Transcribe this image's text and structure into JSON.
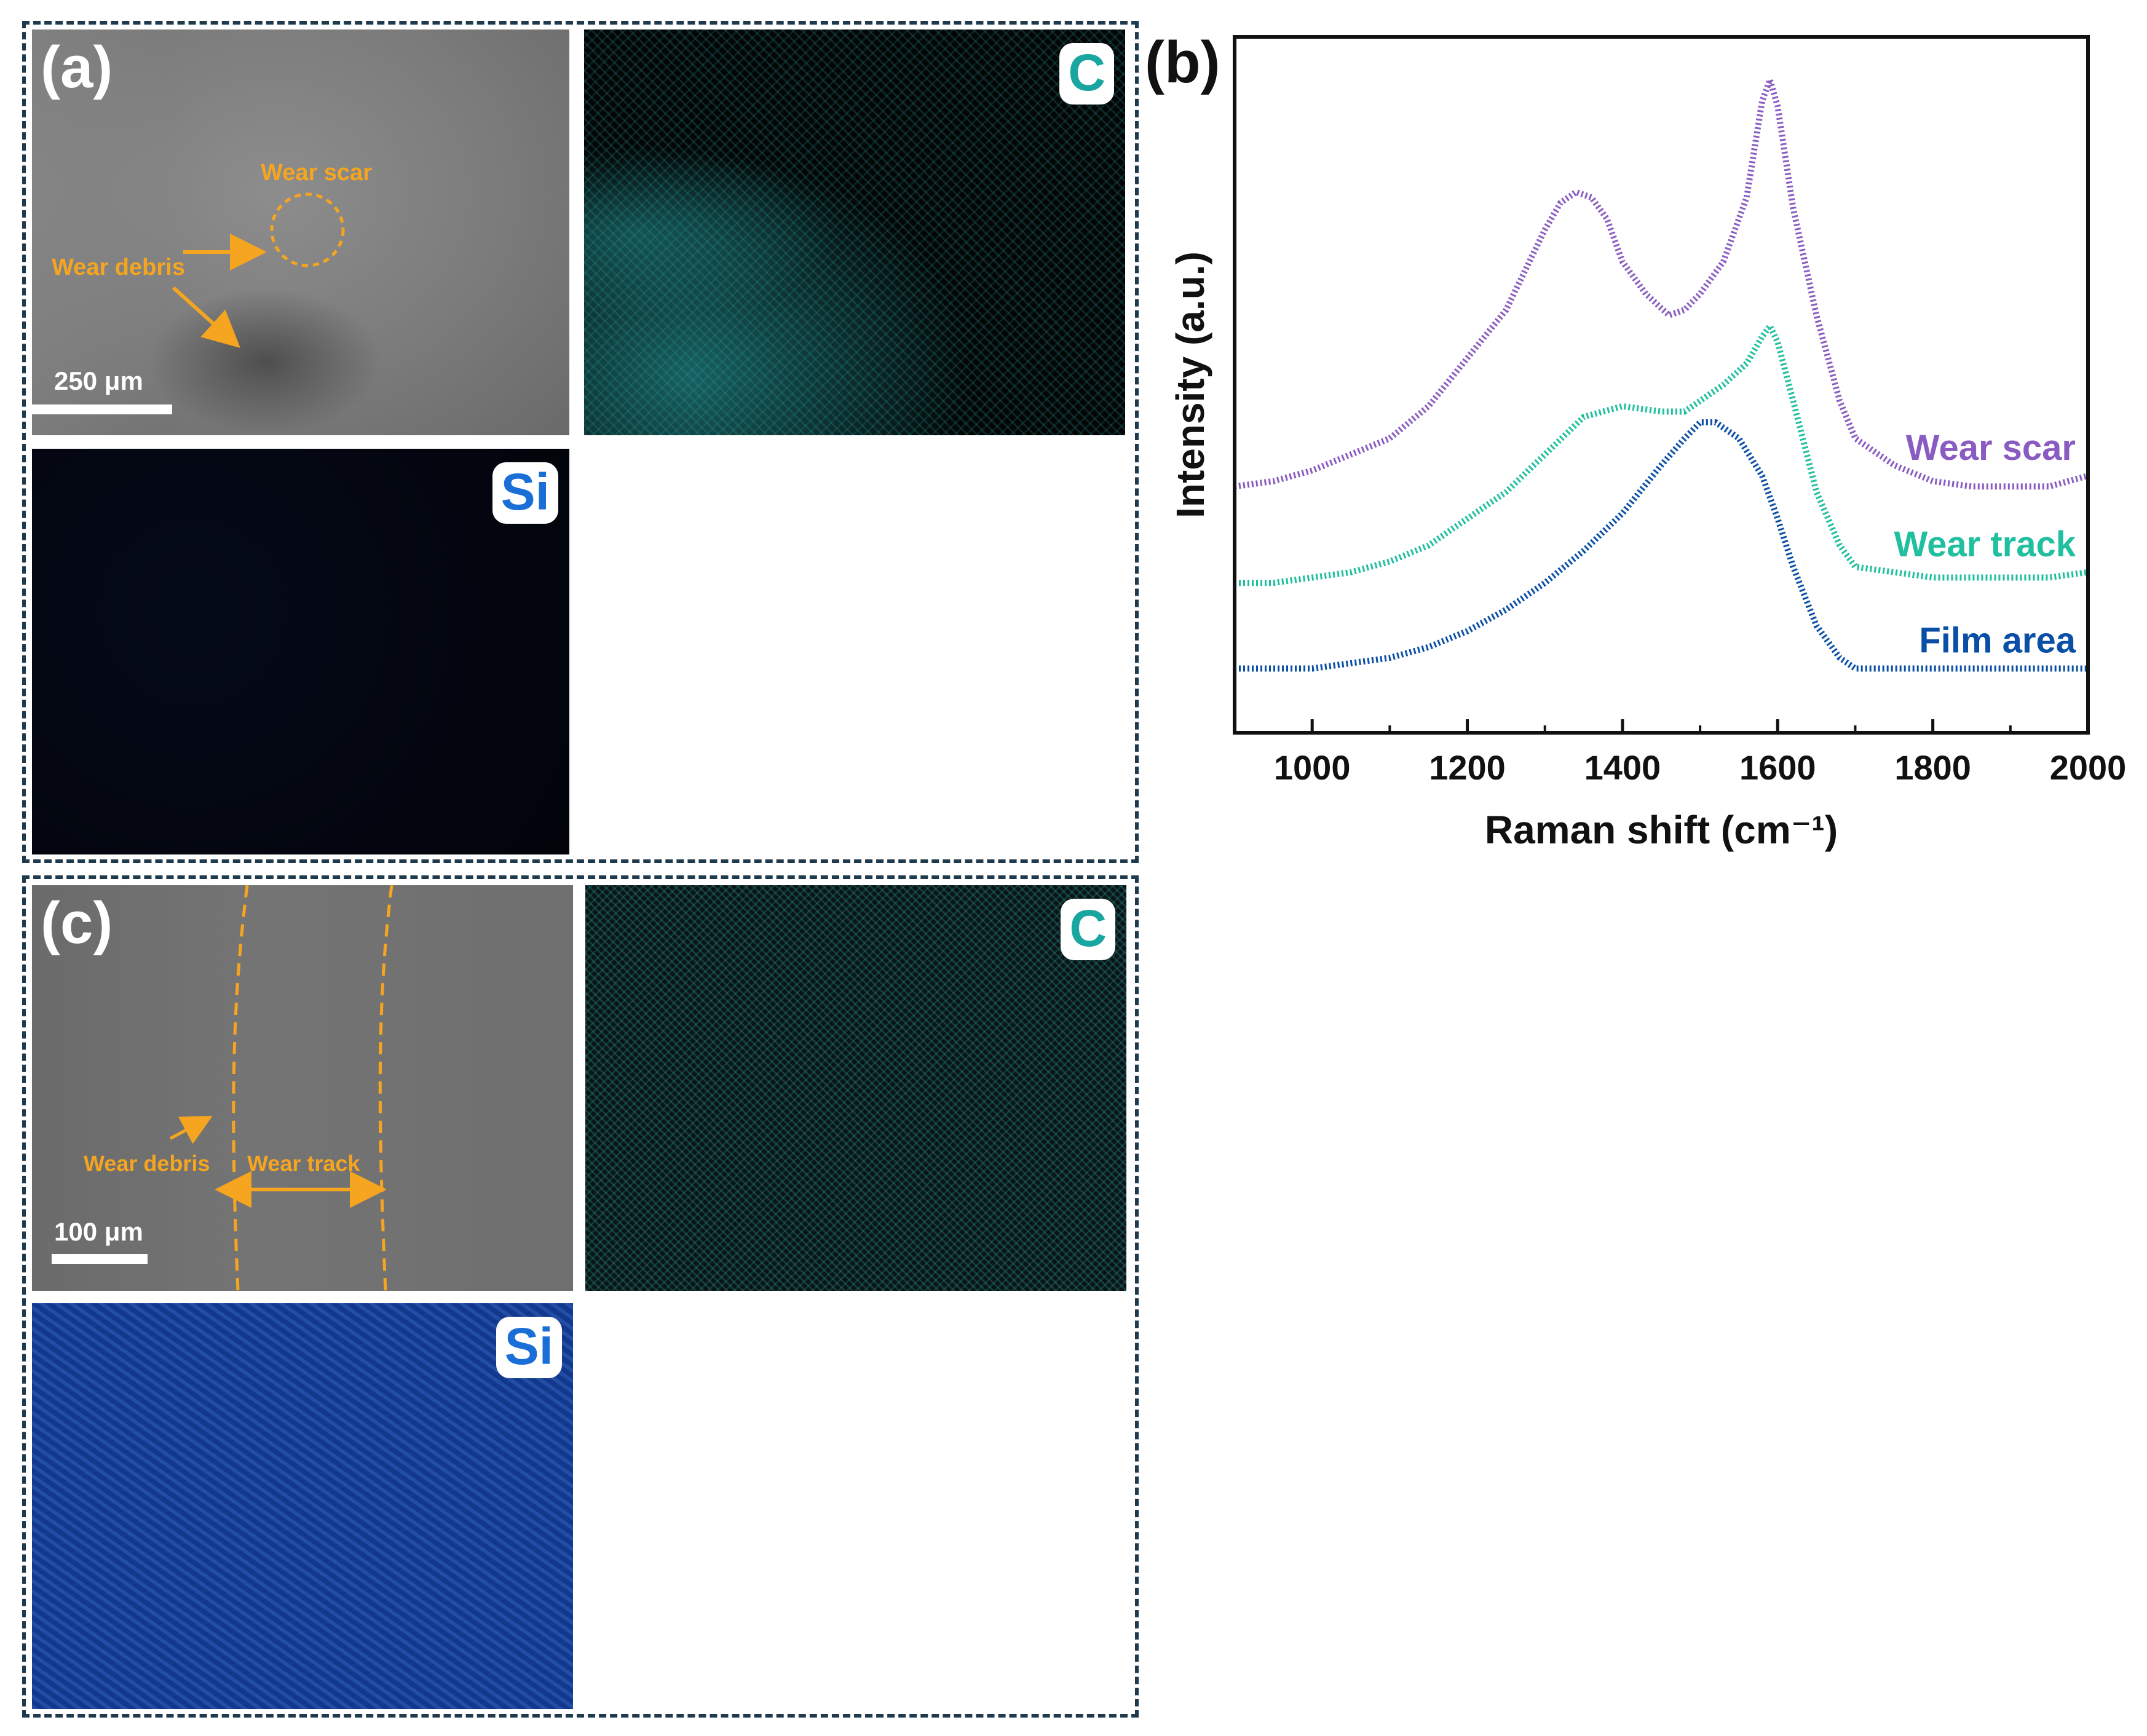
{
  "panel_a": {
    "label": "(a)",
    "sem": {
      "wear_scar_label": "Wear scar",
      "wear_debris_label": "Wear debris",
      "scale_bar": "250 μm"
    },
    "map_c": {
      "element": "C"
    },
    "map_si": {
      "element": "Si"
    }
  },
  "panel_c": {
    "label": "(c)",
    "sem": {
      "wear_debris_label": "Wear debris",
      "wear_track_label": "Wear track",
      "scale_bar": "100 μm"
    },
    "map_c": {
      "element": "C"
    },
    "map_si": {
      "element": "Si"
    }
  },
  "panel_b": {
    "label": "(b)"
  },
  "colors": {
    "annotation": "#f5a51f",
    "wear_scar": "#8a5cc2",
    "wear_track": "#1fbfa0",
    "film_area": "#0a4fa6",
    "c_badge": "#1aa6a0",
    "si_badge": "#1a6fd6"
  },
  "chart_data": {
    "type": "line",
    "title": "",
    "xlabel": "Raman shift (cm⁻¹)",
    "ylabel": "Intensity (a.u.)",
    "xlim": [
      900,
      2000
    ],
    "ylim": [
      0,
      1.3
    ],
    "xticks": [
      1000,
      1200,
      1400,
      1600,
      1800,
      2000
    ],
    "yticks": [],
    "legend": "inline-right",
    "series": [
      {
        "name": "Wear scar",
        "color": "#8a5cc2",
        "x": [
          900,
          950,
          1000,
          1050,
          1100,
          1150,
          1200,
          1250,
          1300,
          1320,
          1340,
          1360,
          1380,
          1400,
          1430,
          1460,
          1480,
          1500,
          1530,
          1560,
          1580,
          1590,
          1600,
          1620,
          1650,
          1680,
          1700,
          1750,
          1800,
          1850,
          1900,
          1950,
          2000
        ],
        "y": [
          0.46,
          0.47,
          0.49,
          0.52,
          0.55,
          0.61,
          0.7,
          0.79,
          0.94,
          0.99,
          1.01,
          1.0,
          0.96,
          0.88,
          0.82,
          0.78,
          0.79,
          0.82,
          0.88,
          1.0,
          1.18,
          1.22,
          1.17,
          0.98,
          0.78,
          0.62,
          0.55,
          0.5,
          0.47,
          0.46,
          0.46,
          0.46,
          0.48
        ]
      },
      {
        "name": "Wear track",
        "color": "#1fbfa0",
        "x": [
          900,
          950,
          1000,
          1050,
          1100,
          1150,
          1200,
          1250,
          1300,
          1350,
          1400,
          1450,
          1480,
          1500,
          1530,
          1560,
          1580,
          1590,
          1600,
          1620,
          1650,
          1680,
          1700,
          1750,
          1800,
          1850,
          1900,
          1950,
          2000
        ],
        "y": [
          0.28,
          0.28,
          0.29,
          0.3,
          0.32,
          0.35,
          0.4,
          0.45,
          0.52,
          0.59,
          0.61,
          0.6,
          0.6,
          0.62,
          0.65,
          0.69,
          0.74,
          0.76,
          0.73,
          0.62,
          0.45,
          0.35,
          0.31,
          0.3,
          0.29,
          0.29,
          0.29,
          0.29,
          0.3
        ]
      },
      {
        "name": "Film area",
        "color": "#0a4fa6",
        "x": [
          900,
          950,
          1000,
          1050,
          1100,
          1150,
          1200,
          1250,
          1300,
          1350,
          1400,
          1450,
          1480,
          1500,
          1520,
          1550,
          1580,
          1600,
          1620,
          1650,
          1680,
          1700,
          1750,
          1800,
          1850,
          1900,
          1950,
          2000
        ],
        "y": [
          0.12,
          0.12,
          0.12,
          0.13,
          0.14,
          0.16,
          0.19,
          0.23,
          0.28,
          0.34,
          0.41,
          0.5,
          0.55,
          0.58,
          0.58,
          0.55,
          0.48,
          0.4,
          0.31,
          0.2,
          0.14,
          0.12,
          0.12,
          0.12,
          0.12,
          0.12,
          0.12,
          0.12
        ]
      }
    ]
  }
}
